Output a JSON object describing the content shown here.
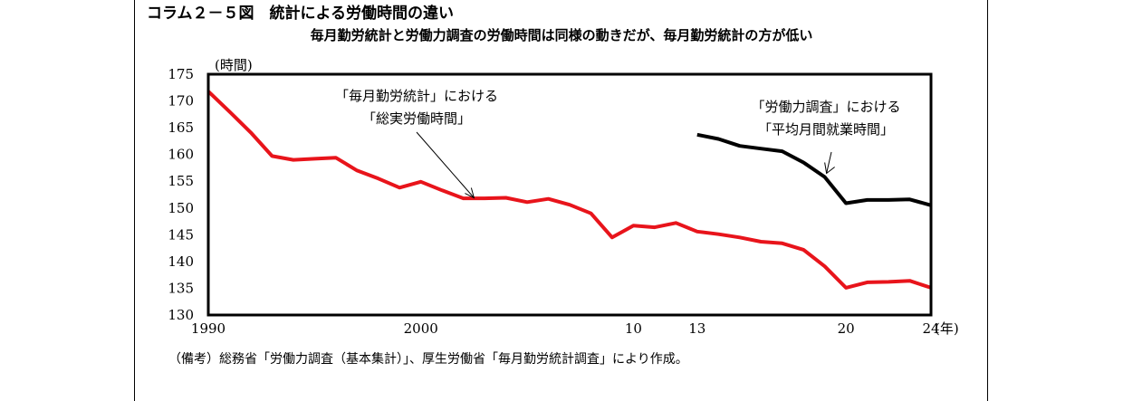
{
  "title": "コラム２－５図　統計による労働時間の違い",
  "subtitle": "毎月勤労統計と労働力調査の労働時間は同様の動きだが、毎月勤労統計の方が低い",
  "note": "（備考）総務省「労働力調査（基本集計）」、厚生労働省「毎月勤労統計調査」により作成。",
  "chart_data": {
    "type": "line",
    "title": "コラム２－５図　統計による労働時間の違い",
    "subtitle": "毎月勤労統計と労働力調査の労働時間は同様の動きだが、毎月勤労統計の方が低い",
    "y_unit": "(時間)",
    "x_unit": "(年)",
    "ylim": [
      130,
      175
    ],
    "yticks": [
      130,
      135,
      140,
      145,
      150,
      155,
      160,
      165,
      170,
      175
    ],
    "xlim": [
      1990,
      2024
    ],
    "xticks": [
      {
        "value": 1990,
        "label": "1990"
      },
      {
        "value": 2000,
        "label": "2000"
      },
      {
        "value": 2010,
        "label": "10"
      },
      {
        "value": 2013,
        "label": "13"
      },
      {
        "value": 2020,
        "label": "20"
      },
      {
        "value": 2024,
        "label": "24"
      }
    ],
    "grid": false,
    "series": [
      {
        "color": "#e8141b",
        "x": [
          1990,
          1991,
          1992,
          1993,
          1994,
          1995,
          1996,
          1997,
          1998,
          1999,
          2000,
          2001,
          2002,
          2003,
          2004,
          2005,
          2006,
          2007,
          2008,
          2009,
          2010,
          2011,
          2012,
          2013,
          2014,
          2015,
          2016,
          2017,
          2018,
          2019,
          2020,
          2021,
          2022,
          2023,
          2024
        ],
        "values": [
          171.8,
          168.0,
          164.1,
          159.7,
          159.0,
          159.2,
          159.4,
          157.0,
          155.5,
          153.8,
          154.9,
          153.3,
          151.8,
          151.8,
          151.9,
          151.1,
          151.7,
          150.6,
          149.0,
          144.5,
          146.7,
          146.4,
          147.2,
          145.6,
          145.1,
          144.5,
          143.7,
          143.4,
          142.2,
          139.1,
          135.1,
          136.1,
          136.2,
          136.4,
          135.1
        ]
      },
      {
        "color": "#000000",
        "x": [
          2013,
          2014,
          2015,
          2016,
          2017,
          2018,
          2019,
          2020,
          2021,
          2022,
          2023,
          2024
        ],
        "values": [
          163.7,
          162.9,
          161.6,
          161.1,
          160.6,
          158.5,
          155.8,
          150.9,
          151.5,
          151.5,
          151.6,
          150.5
        ]
      }
    ],
    "annotations": [
      {
        "lines": [
          "「毎月勤労統計」における",
          "「総実労働時間」"
        ],
        "x": 2002.5,
        "y": 151.9
      },
      {
        "lines": [
          "「労働力調査」における",
          "「平均月間就業時間」"
        ],
        "x": 2019,
        "y": 155.8
      }
    ]
  }
}
